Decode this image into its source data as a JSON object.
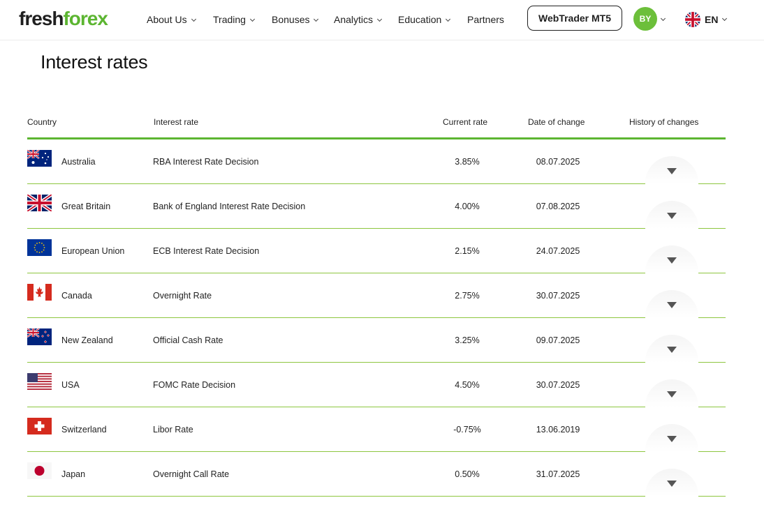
{
  "header": {
    "logo_part1": "fresh",
    "logo_part2": "forex",
    "nav": [
      {
        "label": "About Us",
        "has_dropdown": true
      },
      {
        "label": "Trading",
        "has_dropdown": true
      },
      {
        "label": "Bonuses",
        "has_dropdown": true
      },
      {
        "label": "Analytics",
        "has_dropdown": true
      },
      {
        "label": "Education",
        "has_dropdown": true
      },
      {
        "label": "Partners",
        "has_dropdown": false
      }
    ],
    "webtrader_label": "WebTrader MT5",
    "avatar_initials": "BY",
    "language": "EN"
  },
  "page": {
    "title": "Interest rates"
  },
  "table": {
    "columns": {
      "country": "Country",
      "interest_rate": "Interest rate",
      "current_rate": "Current rate",
      "date_of_change": "Date of change",
      "history": "History of changes"
    },
    "rows": [
      {
        "flag": "australia-flag-icon",
        "country": "Australia",
        "rate_name": "RBA Interest Rate Decision",
        "current": "3.85%",
        "date": "08.07.2025"
      },
      {
        "flag": "great-britain-flag-icon",
        "country": "Great Britain",
        "rate_name": "Bank of England Interest Rate Decision",
        "current": "4.00%",
        "date": "07.08.2025"
      },
      {
        "flag": "european-union-flag-icon",
        "country": "European Union",
        "rate_name": "ECB Interest Rate Decision",
        "current": "2.15%",
        "date": "24.07.2025"
      },
      {
        "flag": "canada-flag-icon",
        "country": "Canada",
        "rate_name": "Overnight Rate",
        "current": "2.75%",
        "date": "30.07.2025"
      },
      {
        "flag": "new-zealand-flag-icon",
        "country": "New Zealand",
        "rate_name": "Official Cash Rate",
        "current": "3.25%",
        "date": "09.07.2025"
      },
      {
        "flag": "usa-flag-icon",
        "country": "USA",
        "rate_name": "FOMC Rate Decision",
        "current": "4.50%",
        "date": "30.07.2025"
      },
      {
        "flag": "switzerland-flag-icon",
        "country": "Switzerland",
        "rate_name": "Libor Rate",
        "current": "-0.75%",
        "date": "13.06.2019"
      },
      {
        "flag": "japan-flag-icon",
        "country": "Japan",
        "rate_name": "Overnight Call Rate",
        "current": "0.50%",
        "date": "31.07.2025"
      }
    ]
  },
  "colors": {
    "brand_green": "#5cb531",
    "row_divider": "#8dc63f",
    "avatar_bg": "#6cbf3a"
  }
}
